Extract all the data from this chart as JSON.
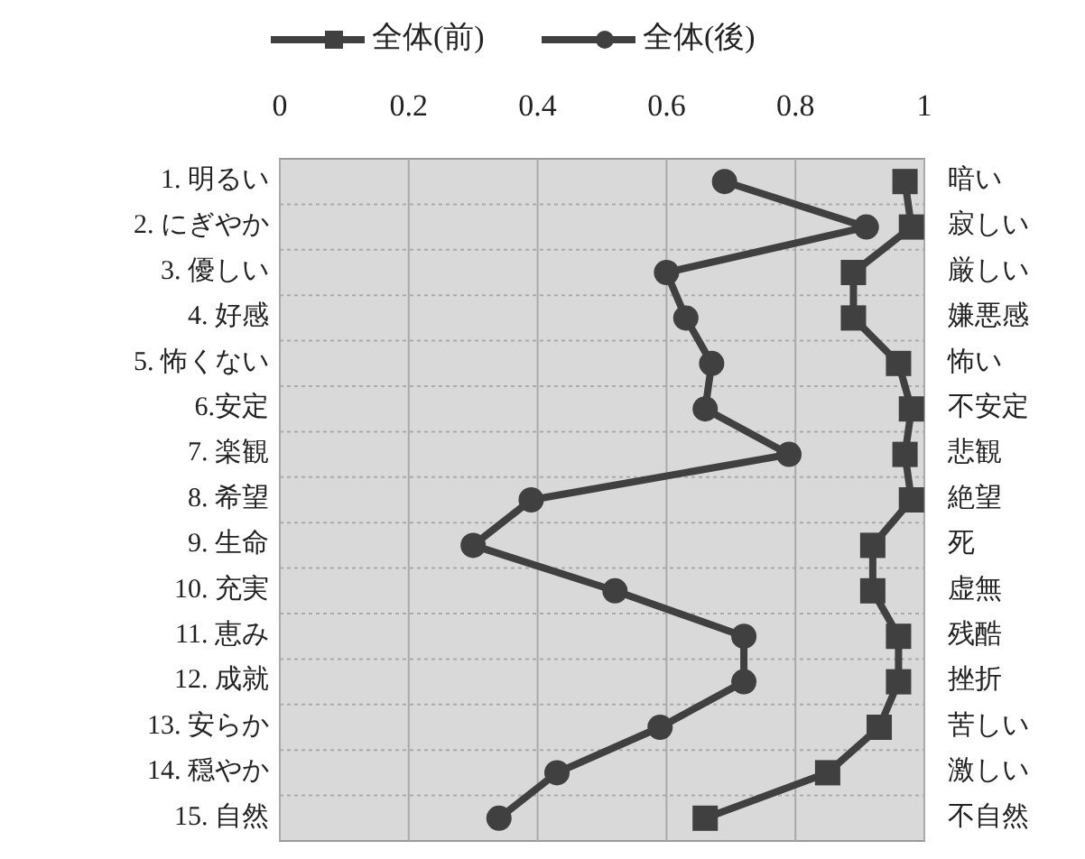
{
  "chart_data": {
    "type": "line",
    "orientation": "horizontal",
    "categories": [
      "1.  明るい",
      "2. にぎやか",
      "3. 優しい",
      "4. 好感",
      "5. 怖くない",
      "6.安定",
      "7. 楽観",
      "8. 希望",
      "9. 生命",
      "10. 充実",
      "11. 恵み",
      "12. 成就",
      "13. 安らか",
      "14. 穏やか",
      "15. 自然"
    ],
    "y2_categories": [
      "暗い",
      "寂しい",
      "厳しい",
      "嫌悪感",
      "怖い",
      "不安定",
      "悲観",
      "絶望",
      "死",
      "虚無",
      "残酷",
      "挫折",
      "苦しい",
      "激しい",
      "不自然"
    ],
    "series": [
      {
        "name": "全体(前)",
        "color": "#404040",
        "marker": "square",
        "values": [
          0.97,
          0.98,
          0.89,
          0.89,
          0.96,
          0.98,
          0.97,
          0.98,
          0.92,
          0.92,
          0.96,
          0.96,
          0.93,
          0.85,
          0.66
        ]
      },
      {
        "name": "全体(後)",
        "color": "#404040",
        "marker": "circle",
        "values": [
          0.69,
          0.91,
          0.6,
          0.63,
          0.67,
          0.66,
          0.79,
          0.39,
          0.3,
          0.52,
          0.72,
          0.72,
          0.59,
          0.43,
          0.34
        ]
      }
    ],
    "xlim": [
      0,
      1
    ],
    "xticks": [
      0,
      0.2,
      0.4,
      0.6,
      0.8,
      1
    ],
    "grid": true,
    "legend": "top"
  }
}
